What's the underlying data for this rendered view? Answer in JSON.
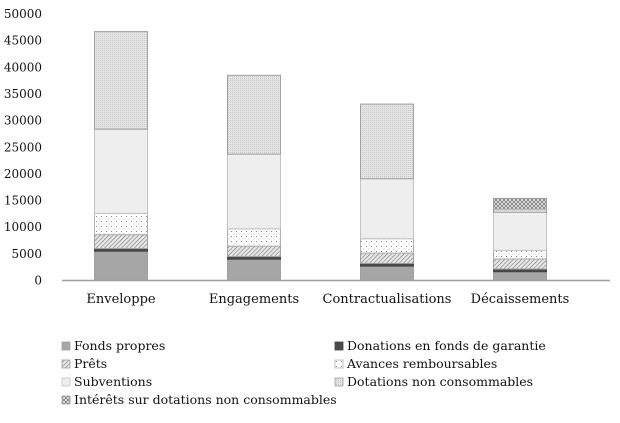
{
  "chart_data": {
    "type": "bar",
    "stacked": true,
    "title": "",
    "xlabel": "",
    "ylabel": "",
    "ylim": [
      0,
      50000
    ],
    "yticks": [
      0,
      5000,
      10000,
      15000,
      20000,
      25000,
      30000,
      35000,
      40000,
      45000,
      50000
    ],
    "grid": false,
    "legend_position": "bottom",
    "categories": [
      "Enveloppe",
      "Engagements",
      "Contractualisations",
      "Décaissements"
    ],
    "series": [
      {
        "name": "Fonds propres",
        "pattern": "solid-mid",
        "values": [
          5500,
          4000,
          2700,
          1650
        ]
      },
      {
        "name": "Donations en fonds de garantie",
        "pattern": "solid-dark",
        "values": [
          500,
          500,
          500,
          500
        ]
      },
      {
        "name": "Prêts",
        "pattern": "diagonal",
        "values": [
          2600,
          1950,
          1950,
          1900
        ]
      },
      {
        "name": "Avances remboursables",
        "pattern": "dots",
        "values": [
          4000,
          3250,
          2700,
          1600
        ]
      },
      {
        "name": "Subventions",
        "pattern": "light",
        "values": [
          15800,
          14000,
          11250,
          7150
        ]
      },
      {
        "name": "Dotations non consommables",
        "pattern": "fine-dots",
        "values": [
          18300,
          14800,
          14000,
          600
        ]
      },
      {
        "name": "Intérêts sur dotations non consommables",
        "pattern": "crosshatch",
        "values": [
          0,
          0,
          0,
          2000
        ]
      }
    ]
  }
}
